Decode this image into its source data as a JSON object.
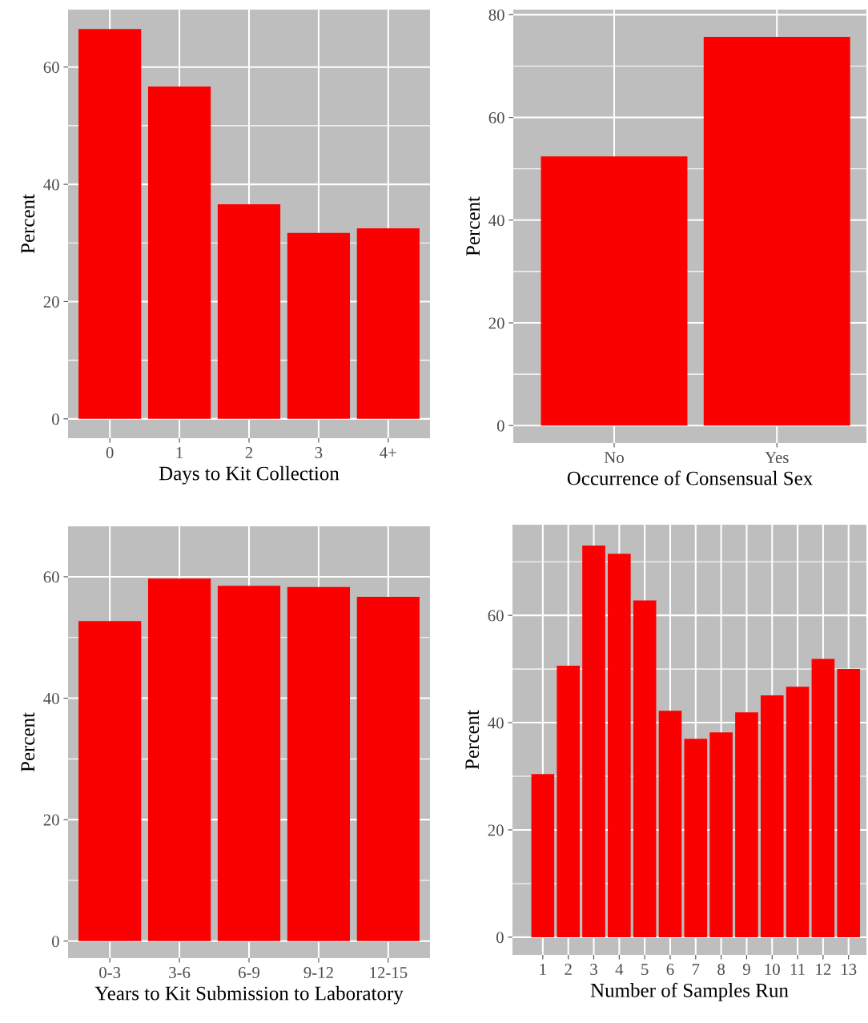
{
  "chart_data": [
    {
      "type": "bar",
      "xlabel": "Days to Kit Collection",
      "ylabel": "Percent",
      "categories": [
        "0",
        "1",
        "2",
        "3",
        "4+"
      ],
      "values": [
        66.5,
        56.7,
        36.6,
        31.7,
        32.5
      ],
      "color": "#fa0000",
      "ylim": [
        -3.3,
        69.8
      ],
      "yticks": [
        0,
        20,
        40,
        60
      ],
      "grid": true
    },
    {
      "type": "bar",
      "xlabel": "Occurrence of Consensual Sex",
      "ylabel": "Percent",
      "categories": [
        "No",
        "Yes"
      ],
      "values": [
        52.4,
        75.7
      ],
      "color": "#fa0000",
      "ylim": [
        -3.4,
        81
      ],
      "yticks": [
        0,
        20,
        40,
        60,
        80
      ],
      "grid": true
    },
    {
      "type": "bar",
      "xlabel": "Years to Kit Submission to Laboratory",
      "ylabel": "Percent",
      "categories": [
        "0-3",
        "3-6",
        "6-9",
        "9-12",
        "12-15"
      ],
      "values": [
        52.7,
        59.7,
        58.5,
        58.3,
        56.7
      ],
      "color": "#fa0000",
      "ylim": [
        -2.8,
        68.3
      ],
      "yticks": [
        0,
        20,
        40,
        60
      ],
      "grid": true
    },
    {
      "type": "bar",
      "xlabel": "Number of Samples Run",
      "ylabel": "Percent",
      "categories": [
        "1",
        "2",
        "3",
        "4",
        "5",
        "6",
        "7",
        "8",
        "9",
        "10",
        "11",
        "12",
        "13"
      ],
      "values": [
        30.4,
        50.6,
        73.0,
        71.5,
        62.8,
        42.2,
        37.0,
        38.2,
        41.9,
        45.1,
        46.7,
        51.9,
        50.0
      ],
      "color": "#fa0000",
      "ylim": [
        -3.3,
        76.9
      ],
      "yticks": [
        0,
        20,
        40,
        60
      ],
      "grid": true
    }
  ]
}
